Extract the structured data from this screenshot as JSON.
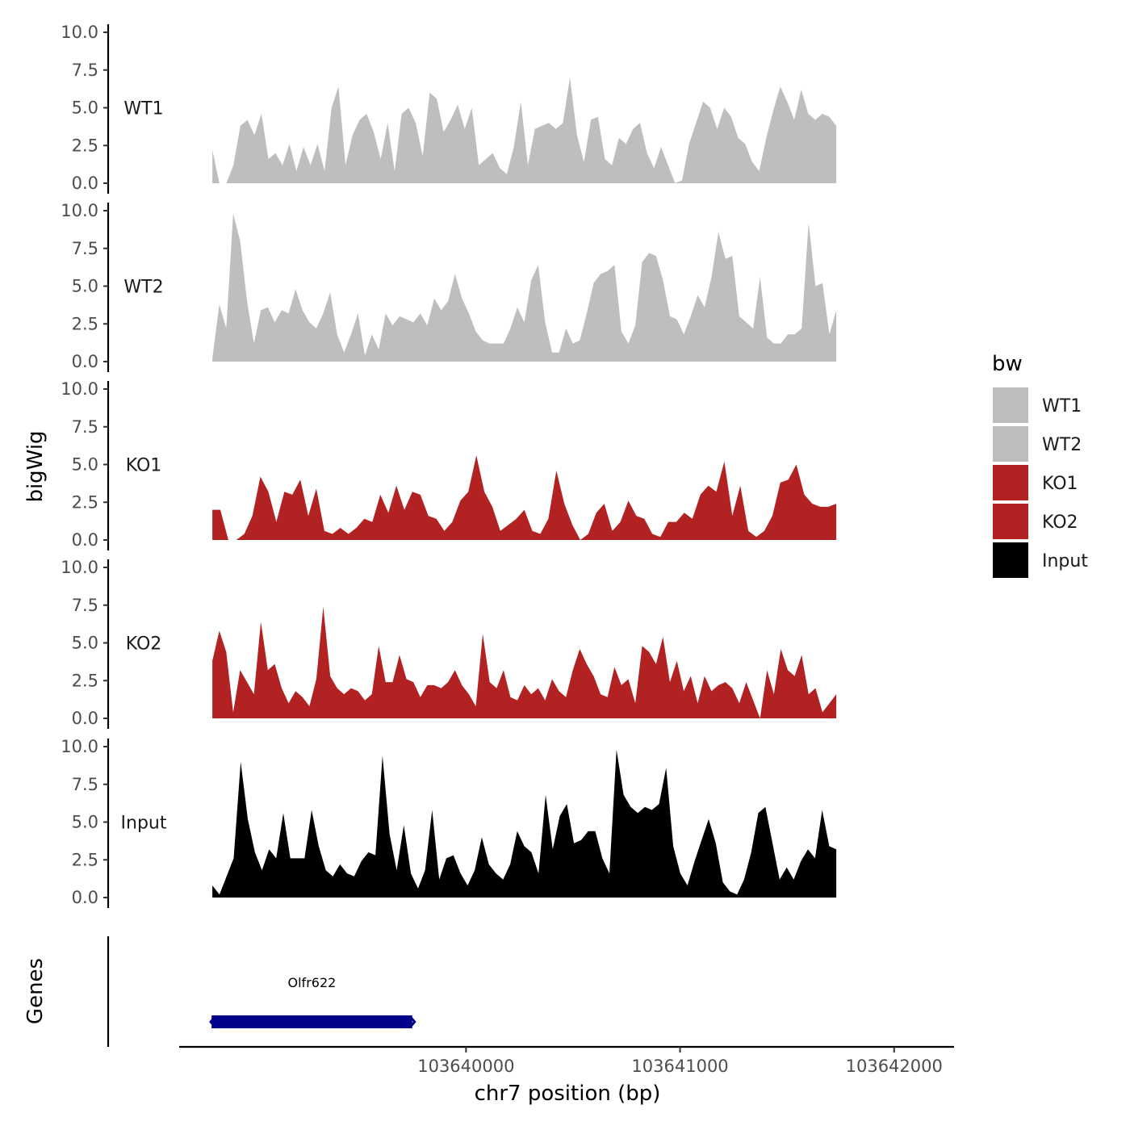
{
  "chart_data": {
    "type": "area",
    "y_axis_title": "bigWig",
    "genes_axis_title": "Genes",
    "x_axis_title": "chr7 position (bp)",
    "x_range": [
      103638660,
      103642280
    ],
    "x_ticks": [
      {
        "value": 103640000,
        "label": "103640000"
      },
      {
        "value": 103641000,
        "label": "103641000"
      },
      {
        "value": 103642000,
        "label": "103642000"
      }
    ],
    "data_x_range": [
      103638815,
      103641730
    ],
    "y_range": [
      0,
      10
    ],
    "y_ticks": [
      {
        "value": 0,
        "label": "0.0"
      },
      {
        "value": 2.5,
        "label": "2.5"
      },
      {
        "value": 5,
        "label": "5.0"
      },
      {
        "value": 7.5,
        "label": "7.5"
      },
      {
        "value": 10,
        "label": "10.0"
      }
    ],
    "legend": {
      "title": "bw",
      "entries": [
        {
          "name": "WT1",
          "color": "#bebebe"
        },
        {
          "name": "WT2",
          "color": "#bebebe"
        },
        {
          "name": "KO1",
          "color": "#b22222"
        },
        {
          "name": "KO2",
          "color": "#b22222"
        },
        {
          "name": "Input",
          "color": "#000000"
        }
      ]
    },
    "series": [
      {
        "name": "WT1",
        "color": "#bebebe",
        "values": [
          2.2,
          0.0,
          0.0,
          1.2,
          3.8,
          4.2,
          3.2,
          4.6,
          1.6,
          2.0,
          1.2,
          2.6,
          0.8,
          2.4,
          1.2,
          2.6,
          0.8,
          5.0,
          6.4,
          1.2,
          3.2,
          4.2,
          4.6,
          3.4,
          1.6,
          4.0,
          0.8,
          4.6,
          5.0,
          4.0,
          1.8,
          6.0,
          5.6,
          3.4,
          4.2,
          5.2,
          3.6,
          5.0,
          1.2,
          1.6,
          2.0,
          1.0,
          0.6,
          2.4,
          5.4,
          1.2,
          3.6,
          3.8,
          4.0,
          3.6,
          4.0,
          7.0,
          3.2,
          1.4,
          4.2,
          4.4,
          1.6,
          1.2,
          3.0,
          2.6,
          3.6,
          4.0,
          2.0,
          1.0,
          2.4,
          1.2,
          0.0,
          0.2,
          2.6,
          4.0,
          5.4,
          5.0,
          3.6,
          5.0,
          4.4,
          3.0,
          2.6,
          1.4,
          0.8,
          3.0,
          4.8,
          6.4,
          5.4,
          4.2,
          6.2,
          4.6,
          4.2,
          4.6,
          4.4,
          3.8
        ]
      },
      {
        "name": "WT2",
        "color": "#bebebe",
        "values": [
          0.2,
          3.8,
          2.2,
          9.8,
          8.0,
          4.0,
          1.2,
          3.4,
          3.6,
          2.6,
          3.4,
          3.2,
          4.8,
          3.4,
          2.6,
          2.2,
          3.2,
          4.6,
          1.8,
          0.6,
          1.8,
          3.2,
          0.4,
          1.8,
          0.8,
          3.2,
          2.4,
          3.0,
          2.8,
          2.6,
          3.2,
          2.4,
          4.2,
          3.4,
          4.0,
          5.8,
          4.2,
          3.2,
          2.0,
          1.4,
          1.2,
          1.2,
          1.2,
          2.2,
          3.6,
          2.6,
          5.4,
          6.4,
          2.6,
          0.6,
          0.6,
          2.2,
          1.2,
          1.4,
          3.2,
          5.2,
          5.8,
          6.0,
          6.4,
          2.0,
          1.2,
          2.4,
          6.6,
          7.2,
          7.0,
          5.4,
          3.0,
          2.8,
          1.8,
          3.0,
          4.4,
          3.6,
          5.6,
          8.6,
          6.8,
          7.0,
          3.0,
          2.6,
          2.2,
          5.6,
          1.6,
          1.2,
          1.2,
          1.8,
          1.8,
          2.2,
          9.2,
          5.0,
          5.2,
          1.8,
          3.4
        ]
      },
      {
        "name": "KO1",
        "color": "#b22222",
        "values": [
          2.0,
          2.0,
          0.0,
          0.0,
          0.4,
          1.6,
          4.2,
          3.2,
          1.2,
          3.2,
          3.0,
          4.0,
          1.6,
          3.4,
          0.6,
          0.4,
          0.8,
          0.4,
          0.8,
          1.4,
          1.2,
          3.0,
          1.8,
          3.6,
          2.0,
          3.2,
          3.0,
          1.6,
          1.4,
          0.6,
          1.2,
          2.6,
          3.2,
          5.6,
          3.2,
          2.2,
          0.6,
          1.0,
          1.4,
          2.0,
          0.6,
          0.4,
          1.4,
          4.6,
          2.4,
          1.0,
          0.0,
          0.4,
          1.8,
          2.4,
          0.6,
          1.2,
          2.6,
          1.6,
          1.4,
          0.4,
          0.2,
          1.2,
          1.2,
          1.8,
          1.4,
          3.0,
          3.6,
          3.2,
          5.2,
          1.6,
          3.6,
          0.6,
          0.2,
          0.6,
          1.6,
          3.8,
          4.0,
          5.0,
          3.0,
          2.4,
          2.2,
          2.2,
          2.4
        ]
      },
      {
        "name": "KO2",
        "color": "#b22222",
        "values": [
          3.8,
          5.8,
          4.4,
          0.4,
          3.2,
          2.4,
          1.6,
          6.4,
          3.2,
          3.6,
          2.0,
          1.0,
          1.8,
          1.4,
          0.8,
          2.6,
          7.4,
          2.8,
          2.0,
          1.6,
          2.0,
          1.8,
          1.2,
          1.6,
          4.8,
          2.4,
          2.4,
          4.2,
          2.6,
          2.4,
          1.4,
          2.2,
          2.2,
          2.0,
          2.4,
          3.2,
          2.2,
          1.6,
          0.8,
          5.6,
          2.4,
          2.0,
          3.2,
          1.4,
          1.2,
          2.2,
          1.6,
          2.0,
          1.2,
          2.6,
          1.8,
          1.4,
          3.2,
          4.6,
          3.6,
          2.8,
          1.6,
          1.4,
          3.4,
          2.2,
          2.6,
          1.0,
          4.8,
          4.4,
          3.6,
          5.4,
          2.4,
          3.8,
          1.8,
          2.8,
          1.0,
          2.8,
          1.8,
          2.2,
          2.4,
          2.0,
          1.0,
          2.4,
          1.2,
          0.0,
          3.2,
          1.6,
          4.6,
          3.2,
          2.8,
          4.2,
          1.6,
          2.0,
          0.4,
          1.0,
          1.6
        ]
      },
      {
        "name": "Input",
        "color": "#000000",
        "values": [
          0.8,
          0.2,
          1.4,
          2.6,
          9.0,
          5.2,
          3.0,
          1.8,
          3.2,
          2.6,
          5.6,
          2.6,
          2.6,
          2.6,
          5.8,
          3.4,
          1.8,
          1.4,
          2.2,
          1.6,
          1.4,
          2.4,
          3.0,
          2.8,
          9.4,
          4.2,
          1.8,
          4.8,
          1.6,
          0.6,
          1.8,
          5.8,
          1.2,
          2.6,
          2.8,
          1.6,
          0.8,
          1.8,
          4.0,
          2.2,
          1.6,
          1.2,
          2.2,
          4.4,
          3.4,
          3.0,
          1.6,
          6.8,
          3.2,
          5.4,
          6.2,
          3.6,
          3.8,
          4.4,
          4.4,
          2.6,
          1.6,
          9.8,
          6.8,
          6.0,
          5.6,
          6.0,
          5.8,
          6.2,
          8.6,
          3.4,
          1.6,
          0.8,
          2.4,
          3.8,
          5.2,
          3.6,
          1.0,
          0.4,
          0.2,
          1.2,
          3.0,
          5.6,
          6.0,
          3.6,
          1.2,
          2.0,
          1.2,
          2.4,
          3.2,
          2.6,
          5.8,
          3.4,
          3.2
        ]
      }
    ],
    "genes": [
      {
        "name": "Olfr622",
        "start": 103638800,
        "end": 103639760,
        "color": "#00008b"
      }
    ]
  }
}
